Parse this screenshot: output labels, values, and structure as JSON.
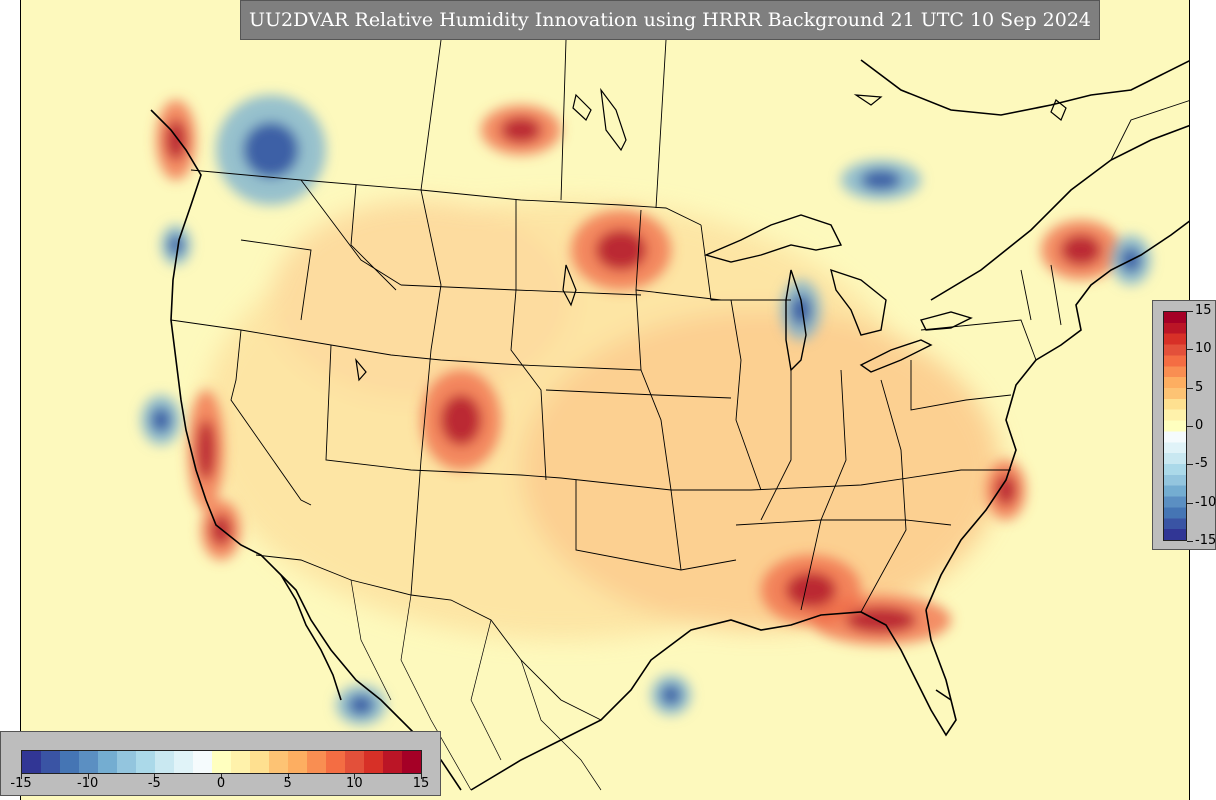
{
  "title": "UU2DVAR Relative Humidity Innovation using HRRR Background 21 UTC 10 Sep 2024",
  "colorbar": {
    "min": -15,
    "max": 15,
    "ticks_right": [
      "15",
      "10",
      "5",
      "0",
      "-5",
      "-10",
      "-15"
    ],
    "ticks_bottom": [
      "-15",
      "-10",
      "-5",
      "0",
      "5",
      "10",
      "15"
    ],
    "colors": [
      "#313695",
      "#3a54a4",
      "#4575b4",
      "#5b8fc2",
      "#74add1",
      "#93c5de",
      "#abd9e9",
      "#c9e8f1",
      "#e0f3f8",
      "#f5fbfd",
      "#ffffbf",
      "#fff2ab",
      "#fee090",
      "#fdc374",
      "#fdae61",
      "#f98e52",
      "#f46d43",
      "#e3503a",
      "#d73027",
      "#bb1526",
      "#a50026"
    ]
  },
  "map": {
    "region": "CONUS",
    "background_color": "#fdf9bd",
    "hot_spots": [
      [
        "south-florida-gulf",
        880,
        620,
        70,
        25
      ],
      [
        "great-plains",
        620,
        250,
        50,
        40
      ],
      [
        "colorado-rockies",
        460,
        420,
        40,
        50
      ],
      [
        "alabama-georgia",
        810,
        590,
        50,
        35
      ],
      [
        "pac-nw-coast",
        175,
        140,
        20,
        40
      ],
      [
        "cal-coast",
        205,
        450,
        18,
        60
      ],
      [
        "ontario-south",
        520,
        130,
        40,
        25
      ],
      [
        "northeast",
        1080,
        250,
        40,
        30
      ],
      [
        "carolina-coast",
        1005,
        490,
        20,
        30
      ],
      [
        "baja",
        220,
        530,
        20,
        30
      ]
    ],
    "cold_spots": [
      [
        "bc-interior",
        270,
        150,
        55,
        55
      ],
      [
        "pacific-sw",
        160,
        420,
        20,
        25
      ],
      [
        "gulf-of-california",
        360,
        705,
        25,
        20
      ],
      [
        "gulf-of-mexico-west",
        670,
        695,
        20,
        20
      ],
      [
        "lake-michigan",
        800,
        310,
        20,
        30
      ],
      [
        "quebec",
        880,
        180,
        40,
        20
      ],
      [
        "newfoundland-area",
        1130,
        260,
        20,
        25
      ],
      [
        "pacific-nw-offshore",
        175,
        245,
        15,
        20
      ]
    ]
  }
}
